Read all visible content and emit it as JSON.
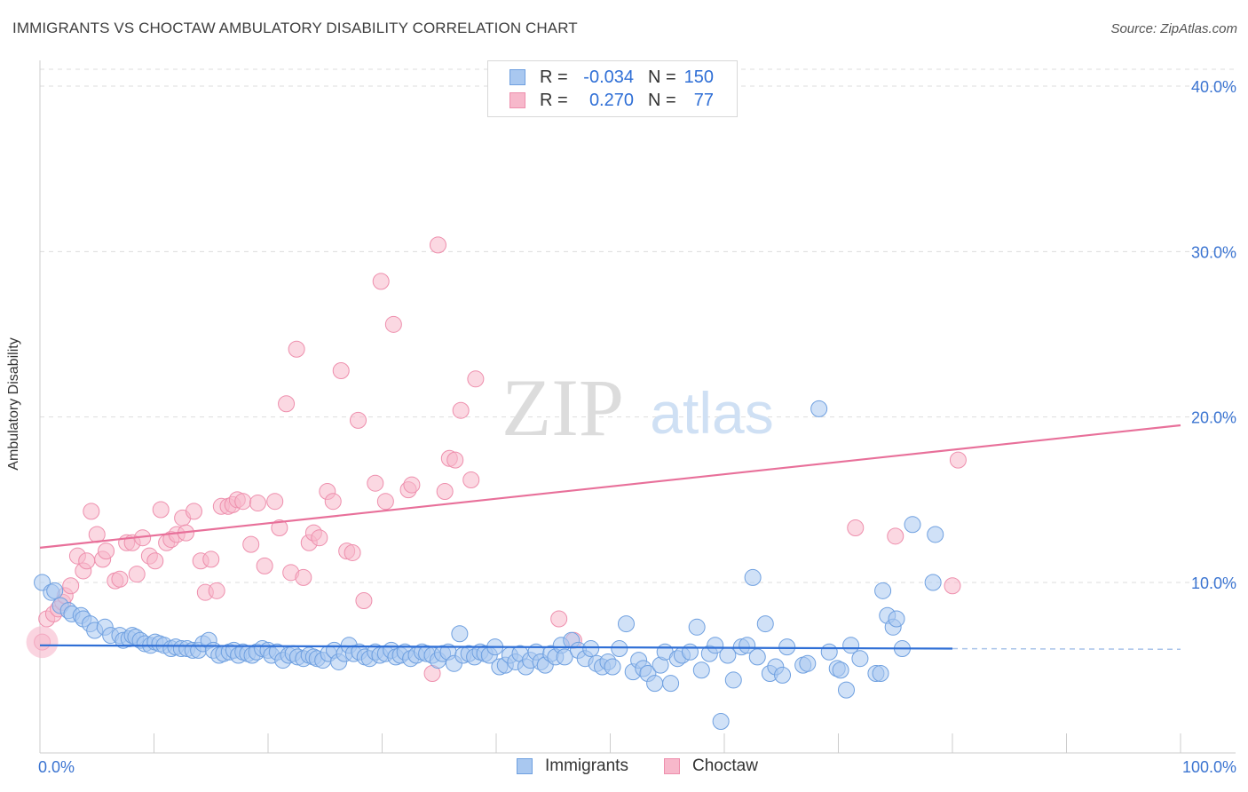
{
  "header": {
    "title": "IMMIGRANTS VS CHOCTAW AMBULATORY DISABILITY CORRELATION CHART",
    "source": "Source: ZipAtlas.com"
  },
  "watermark": {
    "zip": "ZIP",
    "atlas": "atlas"
  },
  "legend": {
    "rows": [
      {
        "r_label": "R =",
        "r_value": "-0.034",
        "n_label": "N =",
        "n_value": "150",
        "color": "#a9c8f0"
      },
      {
        "r_label": "R =",
        "r_value": "0.270",
        "n_label": "N =",
        "n_value": "77",
        "color": "#f7b8cb"
      }
    ]
  },
  "bottom_legend": {
    "immigrants": "Immigrants",
    "choctaw": "Choctaw"
  },
  "colors": {
    "immigrants_fill": "#a9c8f0",
    "immigrants_stroke": "#6fa0e0",
    "immigrants_line": "#2f6fd6",
    "choctaw_fill": "#f7b8cb",
    "choctaw_stroke": "#ee8fad",
    "choctaw_line": "#e8709a",
    "axis_text": "#3b74d1",
    "grid": "#dddddd"
  },
  "chart_data": {
    "type": "scatter",
    "title": "IMMIGRANTS VS CHOCTAW AMBULATORY DISABILITY CORRELATION CHART",
    "xlabel": "",
    "ylabel": "Ambulatory Disability",
    "xlim": [
      0,
      100
    ],
    "ylim": [
      0,
      41.5
    ],
    "x_tick_labels": [
      "0.0%",
      "100.0%"
    ],
    "y_ticks": [
      10,
      20,
      30,
      40
    ],
    "y_tick_labels": [
      "10.0%",
      "20.0%",
      "30.0%",
      "40.0%"
    ],
    "grid": true,
    "series": [
      {
        "name": "Immigrants",
        "R": -0.034,
        "N": 150,
        "trend": {
          "x": [
            0,
            80
          ],
          "y": [
            6.2,
            6.0
          ],
          "dashed_x": [
            80,
            100
          ],
          "dashed_y": [
            6.0,
            5.96
          ]
        },
        "points": [
          [
            0.2,
            10.0
          ],
          [
            1.0,
            9.4
          ],
          [
            1.3,
            9.5
          ],
          [
            1.8,
            8.6
          ],
          [
            2.5,
            8.3
          ],
          [
            2.8,
            8.1
          ],
          [
            3.6,
            8.0
          ],
          [
            3.8,
            7.8
          ],
          [
            4.4,
            7.5
          ],
          [
            4.8,
            7.1
          ],
          [
            5.7,
            7.3
          ],
          [
            6.2,
            6.8
          ],
          [
            7.0,
            6.8
          ],
          [
            7.3,
            6.5
          ],
          [
            7.8,
            6.6
          ],
          [
            8.1,
            6.8
          ],
          [
            8.4,
            6.7
          ],
          [
            8.8,
            6.5
          ],
          [
            9.2,
            6.3
          ],
          [
            9.7,
            6.2
          ],
          [
            10.1,
            6.4
          ],
          [
            10.5,
            6.3
          ],
          [
            10.9,
            6.2
          ],
          [
            11.5,
            6.0
          ],
          [
            11.9,
            6.1
          ],
          [
            12.4,
            6.0
          ],
          [
            12.9,
            6.0
          ],
          [
            13.4,
            5.9
          ],
          [
            13.9,
            5.9
          ],
          [
            14.3,
            6.3
          ],
          [
            14.8,
            6.5
          ],
          [
            15.2,
            5.9
          ],
          [
            15.7,
            5.6
          ],
          [
            16.1,
            5.7
          ],
          [
            16.6,
            5.8
          ],
          [
            17.0,
            5.9
          ],
          [
            17.4,
            5.6
          ],
          [
            17.8,
            5.8
          ],
          [
            18.2,
            5.7
          ],
          [
            18.6,
            5.6
          ],
          [
            19.0,
            5.8
          ],
          [
            19.5,
            6.0
          ],
          [
            20.0,
            5.9
          ],
          [
            20.3,
            5.6
          ],
          [
            20.8,
            5.8
          ],
          [
            21.3,
            5.3
          ],
          [
            21.8,
            5.6
          ],
          [
            22.2,
            5.7
          ],
          [
            22.6,
            5.5
          ],
          [
            23.1,
            5.4
          ],
          [
            23.6,
            5.6
          ],
          [
            24.0,
            5.5
          ],
          [
            24.3,
            5.4
          ],
          [
            24.8,
            5.3
          ],
          [
            25.3,
            5.7
          ],
          [
            25.8,
            5.9
          ],
          [
            26.2,
            5.2
          ],
          [
            26.7,
            5.7
          ],
          [
            27.1,
            6.2
          ],
          [
            27.5,
            5.7
          ],
          [
            28.0,
            5.8
          ],
          [
            28.5,
            5.5
          ],
          [
            28.9,
            5.4
          ],
          [
            29.4,
            5.8
          ],
          [
            29.8,
            5.6
          ],
          [
            30.3,
            5.7
          ],
          [
            30.8,
            5.9
          ],
          [
            31.2,
            5.5
          ],
          [
            31.6,
            5.6
          ],
          [
            32.0,
            5.8
          ],
          [
            32.5,
            5.4
          ],
          [
            33.0,
            5.6
          ],
          [
            33.5,
            5.8
          ],
          [
            33.9,
            5.7
          ],
          [
            34.4,
            5.6
          ],
          [
            34.9,
            5.3
          ],
          [
            35.3,
            5.7
          ],
          [
            35.8,
            5.8
          ],
          [
            36.3,
            5.1
          ],
          [
            36.8,
            6.9
          ],
          [
            37.1,
            5.6
          ],
          [
            37.6,
            5.7
          ],
          [
            38.1,
            5.5
          ],
          [
            38.6,
            5.8
          ],
          [
            39.0,
            5.7
          ],
          [
            39.4,
            5.6
          ],
          [
            39.9,
            6.1
          ],
          [
            40.3,
            4.9
          ],
          [
            40.8,
            5.0
          ],
          [
            41.2,
            5.6
          ],
          [
            41.7,
            5.2
          ],
          [
            42.1,
            5.7
          ],
          [
            42.6,
            4.9
          ],
          [
            43.0,
            5.3
          ],
          [
            43.5,
            5.8
          ],
          [
            43.9,
            5.2
          ],
          [
            44.3,
            5.0
          ],
          [
            44.8,
            5.7
          ],
          [
            45.2,
            5.5
          ],
          [
            45.7,
            6.2
          ],
          [
            46.0,
            5.5
          ],
          [
            46.6,
            6.5
          ],
          [
            47.2,
            5.9
          ],
          [
            47.8,
            5.4
          ],
          [
            48.3,
            6.0
          ],
          [
            48.8,
            5.1
          ],
          [
            49.3,
            4.9
          ],
          [
            49.8,
            5.2
          ],
          [
            50.2,
            4.9
          ],
          [
            50.8,
            6.0
          ],
          [
            51.4,
            7.5
          ],
          [
            52.0,
            4.6
          ],
          [
            52.5,
            5.3
          ],
          [
            52.9,
            4.8
          ],
          [
            53.3,
            4.5
          ],
          [
            53.9,
            3.9
          ],
          [
            54.4,
            5.0
          ],
          [
            54.8,
            5.8
          ],
          [
            55.3,
            3.9
          ],
          [
            55.9,
            5.4
          ],
          [
            56.3,
            5.6
          ],
          [
            57.0,
            5.8
          ],
          [
            57.6,
            7.3
          ],
          [
            58.0,
            4.7
          ],
          [
            58.7,
            5.7
          ],
          [
            59.2,
            6.2
          ],
          [
            59.7,
            1.6
          ],
          [
            60.3,
            5.6
          ],
          [
            60.8,
            4.1
          ],
          [
            61.5,
            6.1
          ],
          [
            62.0,
            6.2
          ],
          [
            62.5,
            10.3
          ],
          [
            62.9,
            5.5
          ],
          [
            63.6,
            7.5
          ],
          [
            64.0,
            4.5
          ],
          [
            64.5,
            4.9
          ],
          [
            65.1,
            4.4
          ],
          [
            65.5,
            6.1
          ],
          [
            66.9,
            5.0
          ],
          [
            67.3,
            5.1
          ],
          [
            68.3,
            20.5
          ],
          [
            69.2,
            5.8
          ],
          [
            69.9,
            4.8
          ],
          [
            70.2,
            4.7
          ],
          [
            70.7,
            3.5
          ],
          [
            71.1,
            6.2
          ],
          [
            71.9,
            5.4
          ],
          [
            73.3,
            4.5
          ],
          [
            73.7,
            4.5
          ],
          [
            73.9,
            9.5
          ],
          [
            74.3,
            8.0
          ],
          [
            74.8,
            7.3
          ],
          [
            75.1,
            7.8
          ],
          [
            75.6,
            6.0
          ],
          [
            76.5,
            13.5
          ],
          [
            78.3,
            10.0
          ],
          [
            78.5,
            12.9
          ]
        ]
      },
      {
        "name": "Choctaw",
        "R": 0.27,
        "N": 77,
        "trend": {
          "x": [
            0,
            100
          ],
          "y": [
            12.1,
            19.5
          ]
        },
        "points": [
          [
            0.2,
            6.4
          ],
          [
            0.6,
            7.8
          ],
          [
            1.2,
            8.1
          ],
          [
            1.6,
            8.4
          ],
          [
            2.0,
            8.8
          ],
          [
            2.2,
            9.2
          ],
          [
            2.7,
            9.8
          ],
          [
            3.3,
            11.6
          ],
          [
            3.8,
            10.7
          ],
          [
            4.1,
            11.3
          ],
          [
            4.5,
            14.3
          ],
          [
            5.0,
            12.9
          ],
          [
            5.5,
            11.4
          ],
          [
            5.8,
            11.9
          ],
          [
            6.6,
            10.1
          ],
          [
            7.0,
            10.2
          ],
          [
            7.6,
            12.4
          ],
          [
            8.1,
            12.4
          ],
          [
            8.5,
            10.5
          ],
          [
            9.0,
            12.7
          ],
          [
            9.6,
            11.6
          ],
          [
            10.1,
            11.3
          ],
          [
            10.6,
            14.4
          ],
          [
            11.1,
            12.4
          ],
          [
            11.5,
            12.6
          ],
          [
            12.0,
            12.9
          ],
          [
            12.5,
            13.9
          ],
          [
            12.8,
            13.0
          ],
          [
            13.5,
            14.3
          ],
          [
            14.1,
            11.3
          ],
          [
            14.5,
            9.4
          ],
          [
            15.0,
            11.4
          ],
          [
            15.5,
            9.5
          ],
          [
            15.9,
            14.6
          ],
          [
            16.5,
            14.6
          ],
          [
            16.9,
            14.7
          ],
          [
            17.3,
            15.0
          ],
          [
            17.8,
            14.9
          ],
          [
            18.5,
            12.3
          ],
          [
            19.1,
            14.8
          ],
          [
            19.7,
            11.0
          ],
          [
            20.6,
            14.9
          ],
          [
            21.0,
            13.3
          ],
          [
            21.6,
            20.8
          ],
          [
            22.0,
            10.6
          ],
          [
            22.5,
            24.1
          ],
          [
            23.1,
            10.3
          ],
          [
            23.6,
            12.4
          ],
          [
            24.0,
            13.0
          ],
          [
            24.5,
            12.7
          ],
          [
            25.2,
            15.5
          ],
          [
            25.7,
            14.9
          ],
          [
            26.4,
            22.8
          ],
          [
            26.9,
            11.9
          ],
          [
            27.4,
            11.8
          ],
          [
            27.9,
            19.8
          ],
          [
            28.4,
            8.9
          ],
          [
            29.4,
            16.0
          ],
          [
            29.9,
            28.2
          ],
          [
            30.3,
            14.9
          ],
          [
            31.0,
            25.6
          ],
          [
            32.3,
            15.6
          ],
          [
            32.6,
            15.9
          ],
          [
            34.4,
            4.5
          ],
          [
            34.9,
            30.4
          ],
          [
            35.5,
            15.5
          ],
          [
            35.9,
            17.5
          ],
          [
            36.4,
            17.4
          ],
          [
            36.9,
            20.4
          ],
          [
            37.8,
            16.2
          ],
          [
            38.2,
            22.3
          ],
          [
            45.5,
            7.8
          ],
          [
            46.8,
            6.5
          ],
          [
            71.5,
            13.3
          ],
          [
            75.0,
            12.8
          ],
          [
            80.0,
            9.8
          ],
          [
            80.5,
            17.4
          ]
        ]
      }
    ]
  }
}
